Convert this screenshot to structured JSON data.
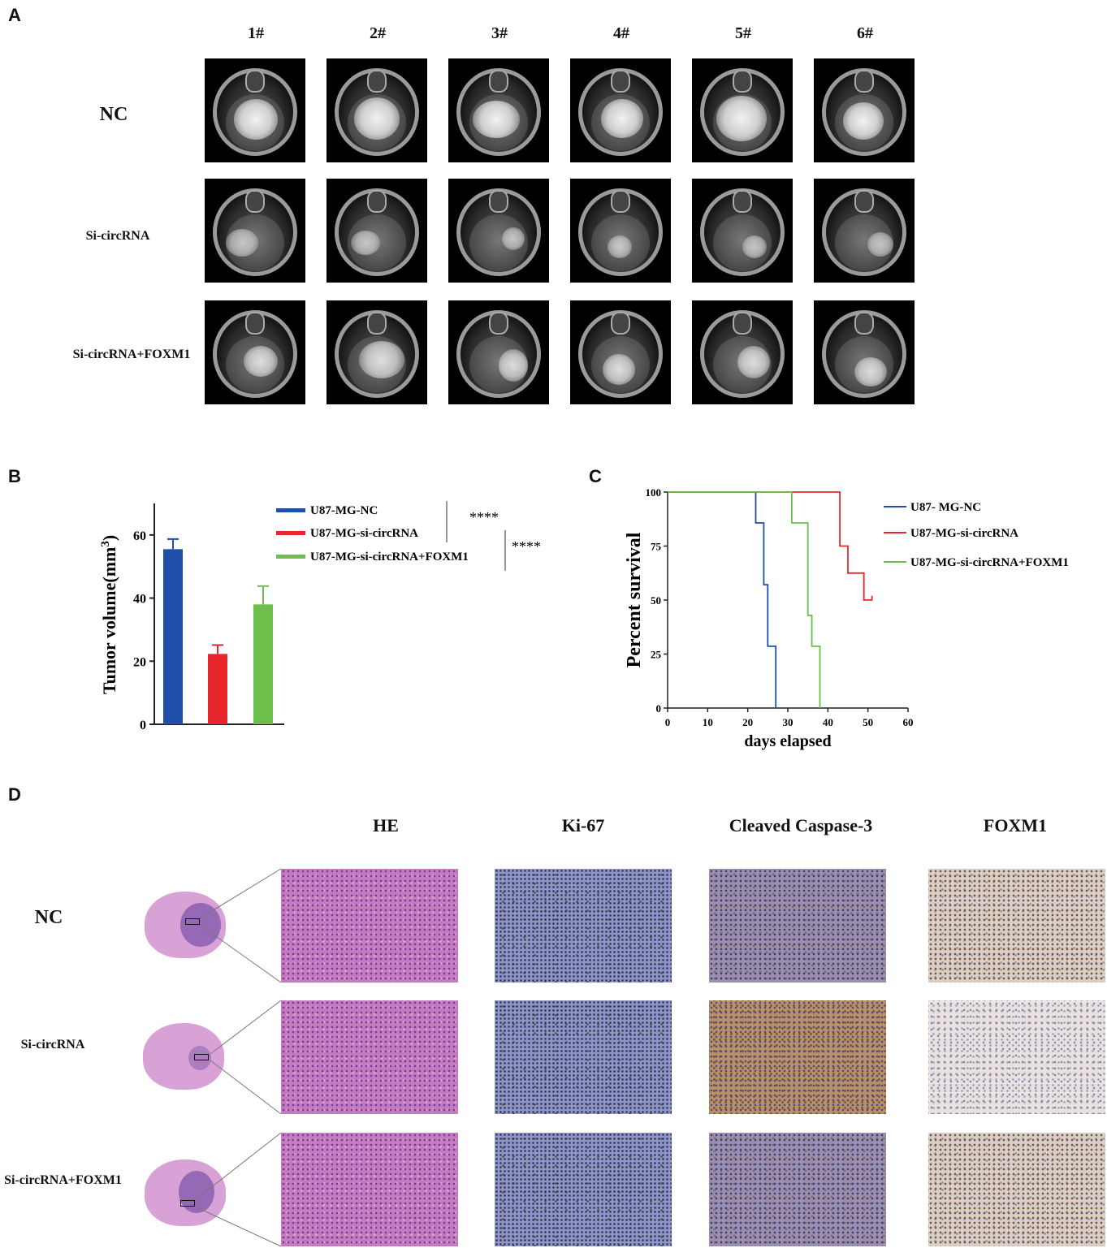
{
  "panels": {
    "A": {
      "letter": "A",
      "columns": [
        "1#",
        "2#",
        "3#",
        "4#",
        "5#",
        "6#"
      ],
      "rows": [
        "NC",
        "Si-circRNA",
        "Si-circRNA+FOXM1"
      ]
    },
    "B": {
      "letter": "B",
      "significance": [
        "****",
        "****"
      ]
    },
    "C": {
      "letter": "C"
    },
    "D": {
      "letter": "D",
      "columns": [
        "HE",
        "Ki-67",
        "Cleaved Caspase-3",
        "FOXM1"
      ],
      "rows": [
        "NC",
        "Si-circRNA",
        "Si-circRNA+FOXM1"
      ]
    }
  },
  "chart_data": [
    {
      "type": "bar",
      "panel": "B",
      "categories": [
        "U87-MG-NC",
        "U87-MG-si-circRNA",
        "U87-MG-si-circRNA+FOXM1"
      ],
      "values": [
        55.5,
        22.3,
        38.0
      ],
      "errors": [
        3.2,
        2.8,
        5.8
      ],
      "colors": [
        "#1f4fa8",
        "#e8272d",
        "#6cc04a"
      ],
      "ylabel": "Tumor volume(mm",
      "ylabel_sup": "3",
      "ylabel_suffix": ")",
      "ylim": [
        0,
        70
      ],
      "yticks": [
        0,
        20,
        40,
        60
      ],
      "legend": [
        "U87-MG-NC",
        "U87-MG-si-circRNA",
        "U87-MG-si-circRNA+FOXM1"
      ],
      "legend_position": "right"
    },
    {
      "type": "line",
      "panel": "C",
      "series": [
        {
          "name": "U87- MG-NC",
          "color": "#1f4fa8",
          "points": [
            [
              0,
              100
            ],
            [
              22,
              100
            ],
            [
              22,
              85.7
            ],
            [
              24,
              85.7
            ],
            [
              24,
              57.1
            ],
            [
              25,
              57.1
            ],
            [
              25,
              28.6
            ],
            [
              27,
              28.6
            ],
            [
              27,
              0
            ]
          ]
        },
        {
          "name": "U87-MG-si-circRNA",
          "color": "#e8272d",
          "points": [
            [
              0,
              100
            ],
            [
              43,
              100
            ],
            [
              43,
              75
            ],
            [
              45,
              75
            ],
            [
              45,
              62.5
            ],
            [
              49,
              62.5
            ],
            [
              49,
              50
            ],
            [
              51,
              50
            ],
            [
              51,
              52
            ]
          ]
        },
        {
          "name": "U87-MG-si-circRNA+FOXM1",
          "color": "#6cc04a",
          "points": [
            [
              0,
              100
            ],
            [
              31,
              100
            ],
            [
              31,
              85.7
            ],
            [
              35,
              85.7
            ],
            [
              35,
              42.9
            ],
            [
              36,
              42.9
            ],
            [
              36,
              28.6
            ],
            [
              38,
              28.6
            ],
            [
              38,
              0
            ]
          ]
        }
      ],
      "xlabel": "days elapsed",
      "ylabel": "Percent survival",
      "xlim": [
        0,
        60
      ],
      "ylim": [
        0,
        100
      ],
      "xticks": [
        0,
        10,
        20,
        30,
        40,
        50,
        60
      ],
      "yticks": [
        0,
        25,
        50,
        75,
        100
      ],
      "legend_position": "right"
    }
  ]
}
